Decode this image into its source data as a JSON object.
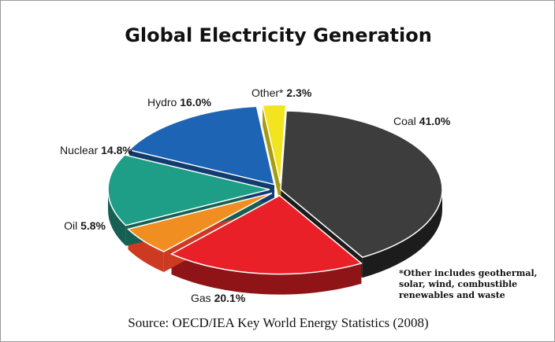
{
  "chart_data": {
    "type": "pie",
    "title": "Global Electricity Generation",
    "slices": [
      {
        "label": "Coal",
        "value_label": "41.0%",
        "value": 41.0,
        "color": "#3d3d3d",
        "side": "#1c1c1c",
        "explode": 0
      },
      {
        "label": "Gas",
        "value_label": "20.1%",
        "value": 20.1,
        "color": "#e92027",
        "side": "#8e1418",
        "explode": 14
      },
      {
        "label": "Oil",
        "value_label": "5.8%",
        "value": 5.8,
        "color": "#f08e22",
        "side": "#cc3a22",
        "explode": 14
      },
      {
        "label": "Nuclear",
        "value_label": "14.8%",
        "value": 14.8,
        "color": "#1e9e86",
        "side": "#155f53",
        "explode": 14
      },
      {
        "label": "Hydro",
        "value_label": "16.0%",
        "value": 16.0,
        "color": "#1e64b4",
        "side": "#123c70",
        "explode": 14
      },
      {
        "label": "Other*",
        "value_label": "2.3%",
        "value": 2.3,
        "color": "#f3e420",
        "side": "#a89a10",
        "explode": 14
      }
    ]
  },
  "footnote": "*Other includes geothermal, solar, wind, combustible renewables and waste",
  "source": "Source: OECD/IEA Key World Energy Statistics (2008)"
}
